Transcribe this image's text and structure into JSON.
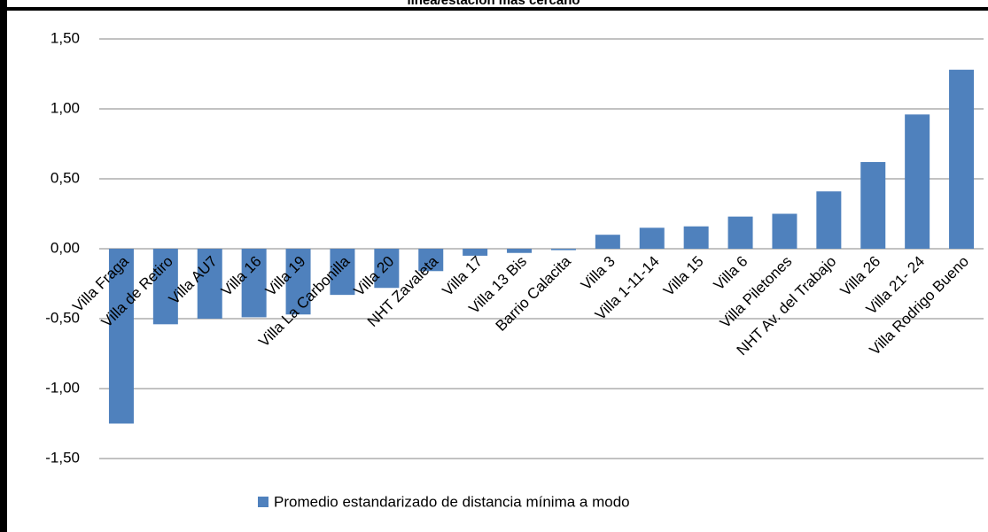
{
  "chart_data": {
    "type": "bar",
    "title": "línea/estación más cercano",
    "categories": [
      "Villa Fraga",
      "Villa de Retiro",
      "Villa AU7",
      "Villa 16",
      "Villa 19",
      "Villa La Carbonilla",
      "Villa 20",
      "NHT Zavaleta",
      "Villa 17",
      "Villa 13 Bis",
      "Barrio Calacita",
      "Villa 3",
      "Villa 1-11-14",
      "Villa 15",
      "Villa 6",
      "Villa Piletones",
      "NHT Av. del Trabajo",
      "Villa 26",
      "Villa 21- 24",
      "Villa Rodrigo Bueno"
    ],
    "series": [
      {
        "name": "Promedio estandarizado de distancia mínima a modo",
        "color": "#4f81bd",
        "values": [
          -1.25,
          -0.54,
          -0.5,
          -0.49,
          -0.47,
          -0.33,
          -0.28,
          -0.16,
          -0.05,
          -0.03,
          -0.01,
          0.1,
          0.15,
          0.16,
          0.23,
          0.25,
          0.41,
          0.62,
          0.96,
          1.28
        ]
      }
    ],
    "ylim": [
      -1.5,
      1.5
    ],
    "yticks": [
      {
        "value": 1.5,
        "label": "1,50"
      },
      {
        "value": 1.0,
        "label": "1,00"
      },
      {
        "value": 0.5,
        "label": "0,50"
      },
      {
        "value": 0,
        "label": "0,00"
      },
      {
        "value": -0.5,
        "label": "-0,50"
      },
      {
        "value": -1.0,
        "label": "-1,00"
      },
      {
        "value": -1.5,
        "label": "-1,50"
      }
    ],
    "grid": true,
    "legend": "bottom"
  }
}
